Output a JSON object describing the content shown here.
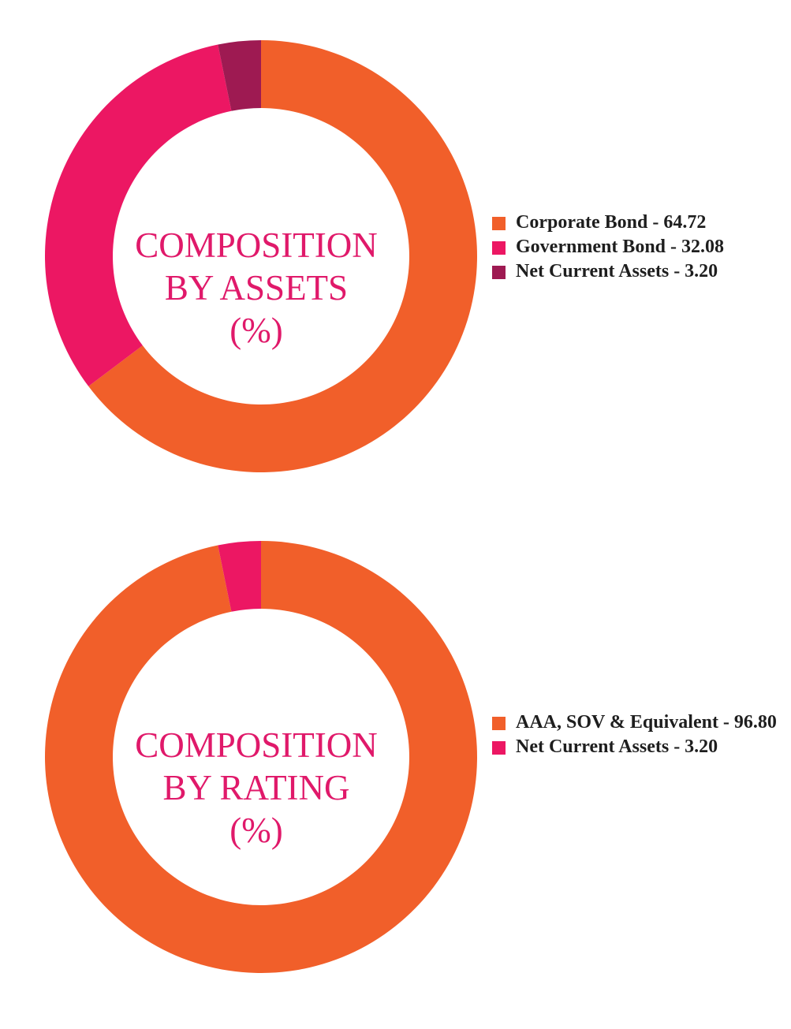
{
  "chart_data": [
    {
      "type": "pie",
      "center_title": [
        "COMPOSITION",
        "BY ASSETS",
        "(%)"
      ],
      "categories": [
        "Corporate Bond",
        "Government Bond",
        "Net Current Assets"
      ],
      "values": [
        64.72,
        32.08,
        3.2
      ],
      "colors": [
        "#f15f2a",
        "#ec1763",
        "#9e1a52"
      ],
      "legend_labels": [
        "Corporate Bond - 64.72",
        "Government Bond - 32.08",
        "Net Current Assets - 3.20"
      ],
      "legend_position": "right"
    },
    {
      "type": "pie",
      "center_title": [
        "COMPOSITION",
        "BY RATING",
        "(%)"
      ],
      "categories": [
        "AAA, SOV & Equivalent",
        "Net Current Assets"
      ],
      "values": [
        96.8,
        3.2
      ],
      "colors": [
        "#f15f2a",
        "#ec1763"
      ],
      "legend_labels": [
        "AAA, SOV & Equivalent - 96.80",
        "Net Current Assets - 3.20"
      ],
      "legend_position": "right"
    }
  ]
}
